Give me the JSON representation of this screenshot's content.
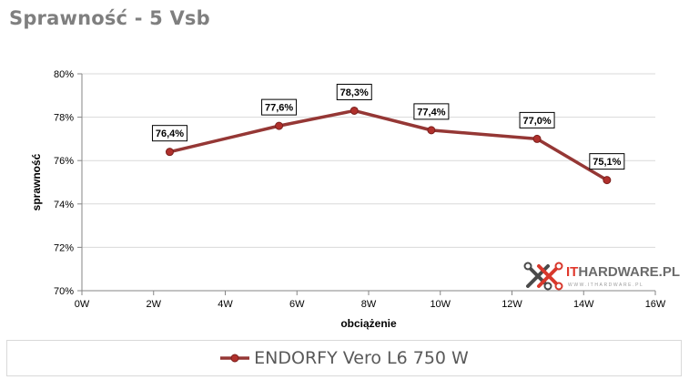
{
  "chart_data": {
    "type": "line",
    "title": "Sprawność - 5 Vsb",
    "xlabel": "obciążenie",
    "ylabel": "sprawność",
    "xlim": [
      0,
      16
    ],
    "ylim": [
      70,
      80
    ],
    "x_ticks": [
      0,
      2,
      4,
      6,
      8,
      10,
      12,
      14,
      16
    ],
    "x_tick_labels": [
      "0W",
      "2W",
      "4W",
      "6W",
      "8W",
      "10W",
      "12W",
      "14W",
      "16W"
    ],
    "y_ticks": [
      70,
      72,
      74,
      76,
      78,
      80
    ],
    "y_tick_labels": [
      "70%",
      "72%",
      "74%",
      "76%",
      "78%",
      "80%"
    ],
    "grid": "horizontal",
    "legend_position": "bottom",
    "series": [
      {
        "name": "ENDORFY Vero L6 750 W",
        "color": "#953735",
        "x": [
          2.45,
          5.5,
          7.6,
          9.75,
          12.7,
          14.65
        ],
        "y": [
          76.4,
          77.6,
          78.3,
          77.4,
          77.0,
          75.1
        ],
        "labels": [
          "76,4%",
          "77,6%",
          "78,3%",
          "77,4%",
          "77,0%",
          "75,1%"
        ]
      }
    ]
  },
  "watermark": {
    "brand_prefix": "IT",
    "brand_rest": "HARDWARE.PL",
    "url": "WWW.ITHARDWARE.PL",
    "icon": "x-logo-icon",
    "colors": {
      "prefix": "#e0382c",
      "rest": "#6b6b6b"
    }
  }
}
